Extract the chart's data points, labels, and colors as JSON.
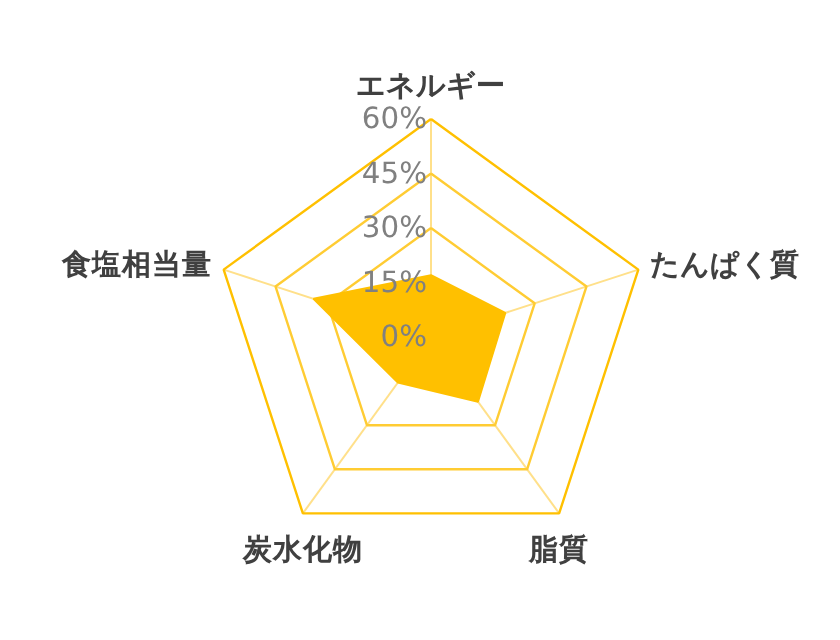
{
  "chart_data": {
    "type": "radar",
    "categories": [
      "エネルギー",
      "たんぱく質",
      "脂質",
      "炭水化物",
      "食塩相当量"
    ],
    "series": [
      {
        "color": "#ffc000",
        "values": [
          17,
          21.5,
          22,
          15.5,
          34
        ]
      }
    ],
    "ylim": [
      0,
      60
    ],
    "yticks": [
      {
        "value": 0,
        "label": "0%"
      },
      {
        "value": 15,
        "label": "15%"
      },
      {
        "value": 30,
        "label": "30%"
      },
      {
        "value": 45,
        "label": "45%"
      },
      {
        "value": 60,
        "label": "60%"
      }
    ],
    "grid": true
  }
}
